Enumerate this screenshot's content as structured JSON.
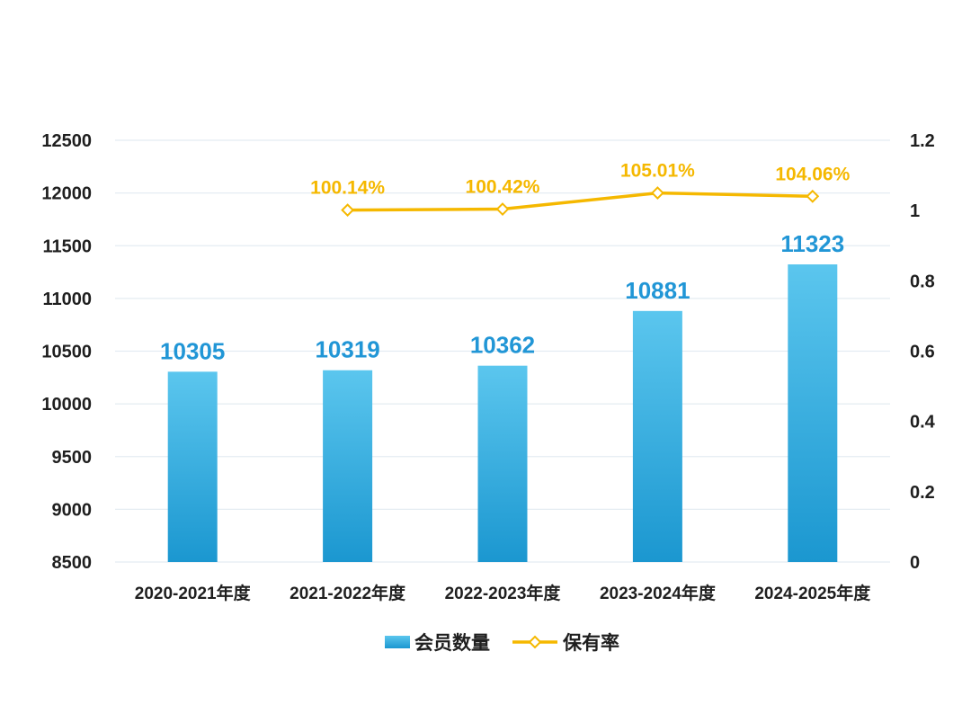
{
  "chart_data": {
    "type": "bar",
    "categories": [
      "2020-2021年度",
      "2021-2022年度",
      "2022-2023年度",
      "2023-2024年度",
      "2024-2025年度"
    ],
    "series": [
      {
        "name": "会员数量",
        "type": "bar",
        "axis": "left",
        "values": [
          10305,
          10319,
          10362,
          10881,
          11323
        ],
        "labels": [
          "10305",
          "10319",
          "10362",
          "10881",
          "11323"
        ],
        "color_top": "#5bc6ee",
        "color_bottom": "#1b97d0",
        "label_color": "#2196d6"
      },
      {
        "name": "保有率",
        "type": "line",
        "axis": "right",
        "values": [
          null,
          1.0014,
          1.0042,
          1.0501,
          1.0406
        ],
        "labels": [
          "",
          "100.14%",
          "100.42%",
          "105.01%",
          "104.06%"
        ],
        "color": "#f5b800",
        "label_color": "#f5b800"
      }
    ],
    "y_left": {
      "min": 8500,
      "max": 12500,
      "ticks": [
        "8500",
        "9000",
        "9500",
        "10000",
        "10500",
        "11000",
        "11500",
        "12000",
        "12500"
      ]
    },
    "y_right": {
      "min": 0,
      "max": 1.2,
      "ticks": [
        "0",
        "0.2",
        "0.4",
        "0.6",
        "0.8",
        "1",
        "1.2"
      ]
    },
    "grid": true,
    "legend": [
      "会员数量",
      "保有率"
    ],
    "legend_position": "bottom-center",
    "grid_color": "#e4ecf2",
    "title": "",
    "xlabel": "",
    "ylabel": ""
  }
}
